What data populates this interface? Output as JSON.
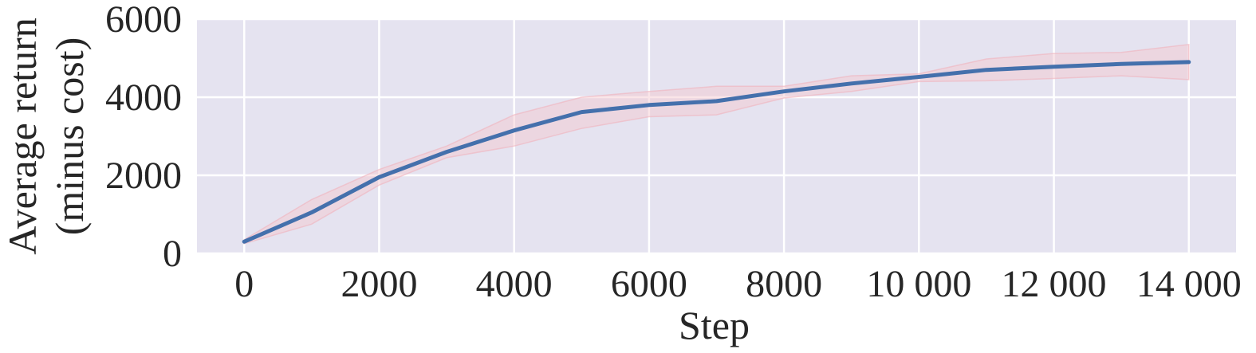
{
  "colors": {
    "plot_background": "#e5e3f0",
    "grid": "#ffffff",
    "line": "#4470ac",
    "band_fill": "#f4c6cd",
    "band_edge": "#f0b3bd",
    "text": "#262626"
  },
  "chart_data": {
    "type": "line",
    "title": "",
    "xlabel": "Step",
    "ylabel_lines": [
      "Average return",
      "(minus cost)"
    ],
    "xlim": [
      -700,
      14700
    ],
    "ylim": [
      0,
      6000
    ],
    "xticks": [
      0,
      2000,
      4000,
      6000,
      8000,
      10000,
      12000,
      14000
    ],
    "xtick_labels": [
      "0",
      "2000",
      "4000",
      "6000",
      "8000",
      "10 000",
      "12 000",
      "14 000"
    ],
    "yticks": [
      0,
      2000,
      4000,
      6000
    ],
    "ytick_labels": [
      "0",
      "2000",
      "4000",
      "6000"
    ],
    "grid": true,
    "legend": "none",
    "series": [
      {
        "x": [
          0,
          1000,
          2000,
          3000,
          4000,
          5000,
          6000,
          7000,
          8000,
          9000,
          10000,
          11000,
          12000,
          13000,
          14000
        ],
        "y": [
          300,
          1050,
          1950,
          2600,
          3150,
          3620,
          3800,
          3900,
          4150,
          4350,
          4520,
          4700,
          4780,
          4850,
          4900
        ],
        "lower": [
          250,
          750,
          1750,
          2450,
          2750,
          3200,
          3500,
          3550,
          3980,
          4150,
          4400,
          4420,
          4480,
          4550,
          4450
        ],
        "upper": [
          350,
          1380,
          2150,
          2750,
          3550,
          4000,
          4150,
          4280,
          4280,
          4550,
          4600,
          4980,
          5120,
          5150,
          5350
        ]
      }
    ]
  }
}
